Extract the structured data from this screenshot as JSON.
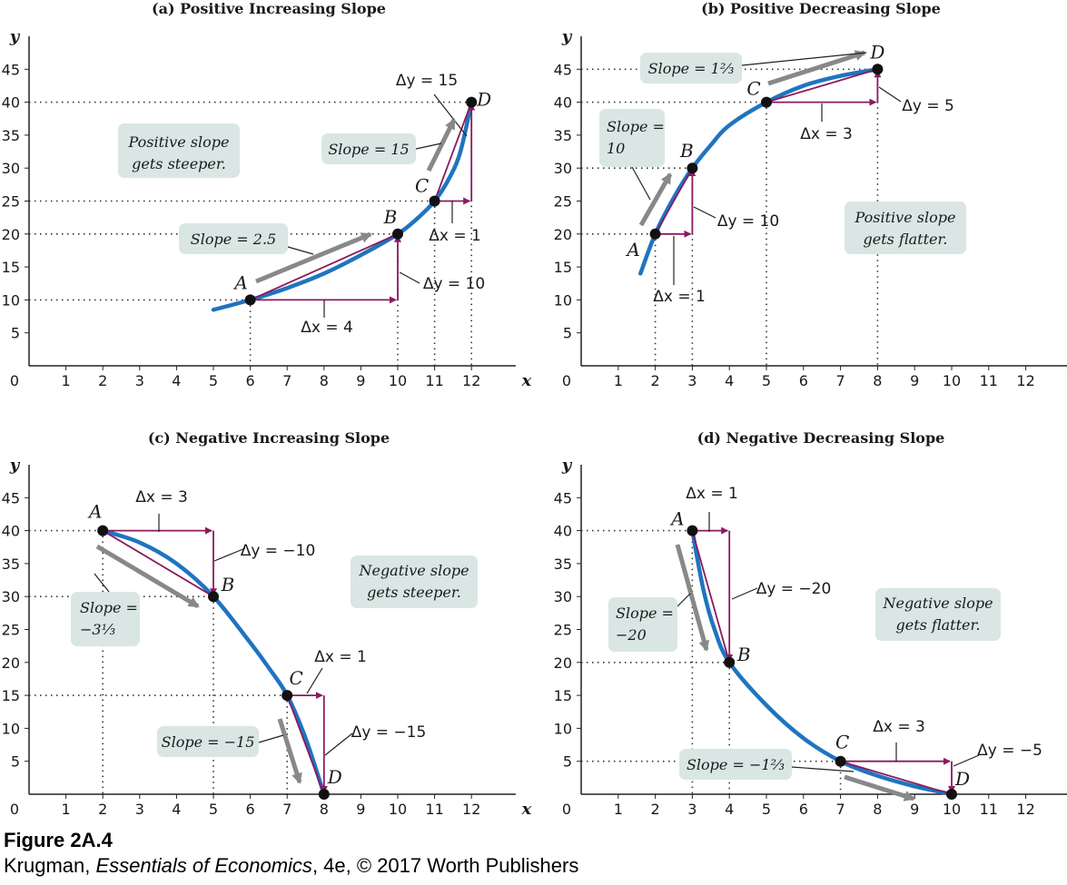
{
  "figure": {
    "caption_title": "Figure 2A.4",
    "caption_author": "Krugman, ",
    "caption_book": "Essentials of Economics",
    "caption_rest": ", 4e, © 2017 Worth Publishers"
  },
  "colors": {
    "curve": "#1f74c0",
    "triangle": "#8b1a5e",
    "arrow": "#888888",
    "box": "#d9e6e4",
    "point": "#111111",
    "axis": "#222222"
  },
  "chart_data": [
    {
      "type": "line",
      "title": "(a) Positive Increasing Slope",
      "xlabel": "x",
      "ylabel": "y",
      "x_ticks": [
        "0",
        "1",
        "2",
        "3",
        "4",
        "5",
        "6",
        "7",
        "8",
        "9",
        "10",
        "11",
        "12"
      ],
      "y_ticks": [
        "5",
        "10",
        "15",
        "20",
        "25",
        "30",
        "35",
        "40",
        "45"
      ],
      "xlim": [
        0,
        13
      ],
      "ylim": [
        0,
        50
      ],
      "curve_x": [
        5.0,
        6.0,
        7.0,
        8.0,
        9.0,
        10.0,
        10.5,
        11.0,
        11.4,
        11.7,
        12.0
      ],
      "curve_y": [
        8.5,
        10.0,
        11.8,
        14.0,
        16.8,
        20.0,
        22.2,
        25.0,
        28.5,
        32.5,
        40.0
      ],
      "points": [
        {
          "label": "A",
          "x": 6,
          "y": 10
        },
        {
          "label": "B",
          "x": 10,
          "y": 20
        },
        {
          "label": "C",
          "x": 11,
          "y": 25
        },
        {
          "label": "D",
          "x": 12,
          "y": 40
        }
      ],
      "segments": [
        {
          "from": 0,
          "to": 1,
          "dx_label": "Δx = 4",
          "dy_label": "Δy = 10",
          "slope_label": "Slope = 2.5"
        },
        {
          "from": 2,
          "to": 3,
          "dx_label": "Δx = 1",
          "dy_label": "Δy = 15",
          "slope_label": "Slope = 15"
        }
      ],
      "annotation": [
        "Positive slope",
        "gets steeper."
      ]
    },
    {
      "type": "line",
      "title": "(b) Positive Decreasing Slope",
      "xlabel": "x",
      "ylabel": "y",
      "x_ticks": [
        "0",
        "1",
        "2",
        "3",
        "4",
        "5",
        "6",
        "7",
        "8",
        "9",
        "10",
        "11",
        "12"
      ],
      "y_ticks": [
        "5",
        "10",
        "15",
        "20",
        "25",
        "30",
        "35",
        "40",
        "45"
      ],
      "xlim": [
        0,
        13
      ],
      "ylim": [
        0,
        50
      ],
      "curve_x": [
        1.6,
        2.0,
        2.5,
        3.0,
        3.5,
        4.0,
        5.0,
        6.0,
        7.0,
        8.0
      ],
      "curve_y": [
        14.0,
        20.0,
        25.5,
        30.0,
        33.5,
        36.5,
        40.0,
        42.5,
        44.0,
        45.0
      ],
      "points": [
        {
          "label": "A",
          "x": 2,
          "y": 20
        },
        {
          "label": "B",
          "x": 3,
          "y": 30
        },
        {
          "label": "C",
          "x": 5,
          "y": 40
        },
        {
          "label": "D",
          "x": 8,
          "y": 45
        }
      ],
      "segments": [
        {
          "from": 0,
          "to": 1,
          "dx_label": "Δx = 1",
          "dy_label": "Δy = 10",
          "slope_label": [
            "Slope =",
            "10"
          ]
        },
        {
          "from": 2,
          "to": 3,
          "dx_label": "Δx = 3",
          "dy_label": "Δy = 5",
          "slope_label": "Slope = 1⅔"
        }
      ],
      "annotation": [
        "Positive slope",
        "gets flatter."
      ]
    },
    {
      "type": "line",
      "title": "(c) Negative Increasing Slope",
      "xlabel": "x",
      "ylabel": "y",
      "x_ticks": [
        "0",
        "1",
        "2",
        "3",
        "4",
        "5",
        "6",
        "7",
        "8",
        "9",
        "10",
        "11",
        "12"
      ],
      "y_ticks": [
        "5",
        "10",
        "15",
        "20",
        "25",
        "30",
        "35",
        "40",
        "45"
      ],
      "xlim": [
        0,
        13
      ],
      "ylim": [
        0,
        50
      ],
      "curve_x": [
        2.0,
        3.0,
        4.0,
        5.0,
        6.0,
        6.5,
        7.0,
        7.5,
        8.0
      ],
      "curve_y": [
        40.0,
        38.2,
        35.0,
        30.0,
        23.0,
        19.2,
        15.0,
        8.5,
        0.0
      ],
      "points": [
        {
          "label": "A",
          "x": 2,
          "y": 40
        },
        {
          "label": "B",
          "x": 5,
          "y": 30
        },
        {
          "label": "C",
          "x": 7,
          "y": 15
        },
        {
          "label": "D",
          "x": 8,
          "y": 0
        }
      ],
      "segments": [
        {
          "from": 0,
          "to": 1,
          "dx_label": "Δx = 3",
          "dy_label": "Δy = −10",
          "slope_label": [
            "Slope =",
            "−3⅓"
          ]
        },
        {
          "from": 2,
          "to": 3,
          "dx_label": "Δx = 1",
          "dy_label": "Δy = −15",
          "slope_label": "Slope = −15"
        }
      ],
      "annotation": [
        "Negative slope",
        "gets steeper."
      ]
    },
    {
      "type": "line",
      "title": "(d) Negative Decreasing Slope",
      "xlabel": "x",
      "ylabel": "y",
      "x_ticks": [
        "0",
        "1",
        "2",
        "3",
        "4",
        "5",
        "6",
        "7",
        "8",
        "9",
        "10",
        "11",
        "12"
      ],
      "y_ticks": [
        "5",
        "10",
        "15",
        "20",
        "25",
        "30",
        "35",
        "40",
        "45"
      ],
      "xlim": [
        0,
        13
      ],
      "ylim": [
        0,
        50
      ],
      "curve_x": [
        3.0,
        3.3,
        3.6,
        4.0,
        5.0,
        6.0,
        7.0,
        8.0,
        9.0,
        10.0
      ],
      "curve_y": [
        40.0,
        31.0,
        25.0,
        20.0,
        13.5,
        8.5,
        5.0,
        2.8,
        1.2,
        0.0
      ],
      "points": [
        {
          "label": "A",
          "x": 3,
          "y": 40
        },
        {
          "label": "B",
          "x": 4,
          "y": 20
        },
        {
          "label": "C",
          "x": 7,
          "y": 5
        },
        {
          "label": "D",
          "x": 10,
          "y": 0
        }
      ],
      "segments": [
        {
          "from": 0,
          "to": 1,
          "dx_label": "Δx = 1",
          "dy_label": "Δy = −20",
          "slope_label": [
            "Slope =",
            "−20"
          ]
        },
        {
          "from": 2,
          "to": 3,
          "dx_label": "Δx = 3",
          "dy_label": "Δy = −5",
          "slope_label": "Slope = −1⅔"
        }
      ],
      "annotation": [
        "Negative slope",
        "gets flatter."
      ]
    }
  ]
}
